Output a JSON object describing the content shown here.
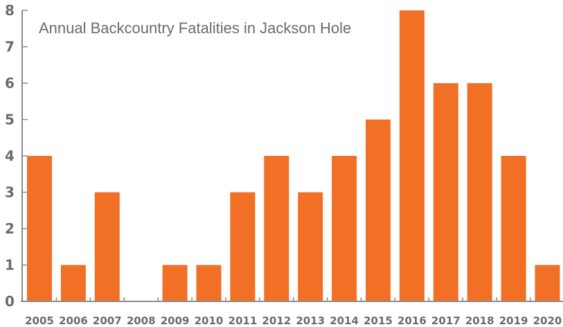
{
  "chart_data": {
    "type": "bar",
    "title": "Annual Backcountry Fatalities in Jackson Hole",
    "xlabel": "",
    "ylabel": "",
    "categories": [
      "2005",
      "2006",
      "2007",
      "2008",
      "2009",
      "2010",
      "2011",
      "2012",
      "2013",
      "2014",
      "2015",
      "2016",
      "2017",
      "2018",
      "2019",
      "2020"
    ],
    "values": [
      4,
      1,
      3,
      0,
      1,
      1,
      3,
      4,
      3,
      4,
      5,
      8,
      6,
      6,
      4,
      1
    ],
    "ylim": [
      0,
      8
    ],
    "yticks": [
      "0",
      "1",
      "2",
      "3",
      "4",
      "5",
      "6",
      "7",
      "8"
    ],
    "grid": false,
    "colors": {
      "bar": "#f26f26",
      "axis": "#8a8a8a",
      "text": "#6b6b6b"
    }
  }
}
